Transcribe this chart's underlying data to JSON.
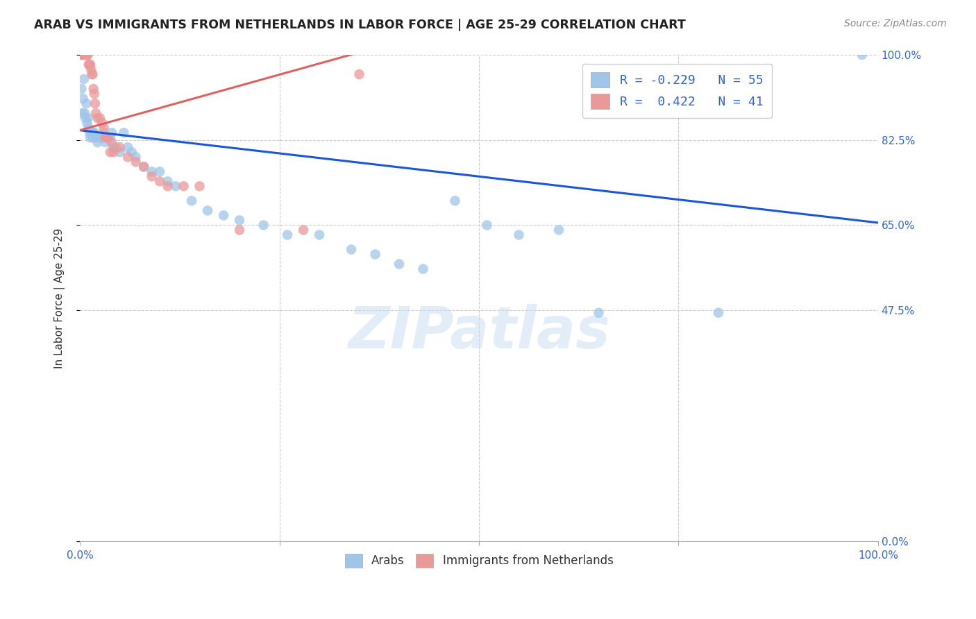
{
  "title": "ARAB VS IMMIGRANTS FROM NETHERLANDS IN LABOR FORCE | AGE 25-29 CORRELATION CHART",
  "source": "Source: ZipAtlas.com",
  "ylabel": "In Labor Force | Age 25-29",
  "xlim": [
    0.0,
    1.0
  ],
  "ylim": [
    0.0,
    1.0
  ],
  "ytick_labels": [
    "0.0%",
    "47.5%",
    "65.0%",
    "82.5%",
    "100.0%"
  ],
  "ytick_vals": [
    0.0,
    0.475,
    0.65,
    0.825,
    1.0
  ],
  "grid_color": "#cccccc",
  "background_color": "#ffffff",
  "arab_color": "#9fc5e8",
  "imm_color": "#ea9999",
  "arab_line_color": "#1a56db",
  "imm_line_color": "#e06060",
  "legend_R_arab": "R = -0.229",
  "legend_N_arab": "N = 55",
  "legend_R_imm": "R =  0.422",
  "legend_N_imm": "N = 41",
  "watermark": "ZIPatlas",
  "arab_x": [
    0.002,
    0.003,
    0.004,
    0.005,
    0.006,
    0.007,
    0.008,
    0.009,
    0.01,
    0.011,
    0.012,
    0.013,
    0.015,
    0.016,
    0.017,
    0.018,
    0.02,
    0.022,
    0.025,
    0.028,
    0.03,
    0.032,
    0.035,
    0.038,
    0.04,
    0.042,
    0.045,
    0.05,
    0.055,
    0.06,
    0.065,
    0.07,
    0.08,
    0.09,
    0.1,
    0.11,
    0.12,
    0.14,
    0.16,
    0.18,
    0.2,
    0.23,
    0.26,
    0.3,
    0.34,
    0.37,
    0.4,
    0.43,
    0.47,
    0.51,
    0.55,
    0.6,
    0.65,
    0.8,
    0.98
  ],
  "arab_y": [
    0.93,
    0.88,
    0.91,
    0.95,
    0.88,
    0.87,
    0.9,
    0.86,
    0.87,
    0.85,
    0.84,
    0.83,
    0.84,
    0.83,
    0.84,
    0.84,
    0.83,
    0.82,
    0.83,
    0.83,
    0.84,
    0.82,
    0.83,
    0.83,
    0.84,
    0.81,
    0.81,
    0.8,
    0.84,
    0.81,
    0.8,
    0.79,
    0.77,
    0.76,
    0.76,
    0.74,
    0.73,
    0.7,
    0.68,
    0.67,
    0.66,
    0.65,
    0.63,
    0.63,
    0.6,
    0.59,
    0.57,
    0.56,
    0.7,
    0.65,
    0.63,
    0.64,
    0.47,
    0.47,
    1.0
  ],
  "imm_x": [
    0.001,
    0.002,
    0.003,
    0.004,
    0.005,
    0.006,
    0.007,
    0.008,
    0.009,
    0.01,
    0.011,
    0.012,
    0.013,
    0.014,
    0.015,
    0.016,
    0.017,
    0.018,
    0.019,
    0.02,
    0.022,
    0.025,
    0.028,
    0.03,
    0.032,
    0.035,
    0.038,
    0.04,
    0.042,
    0.05,
    0.06,
    0.07,
    0.08,
    0.09,
    0.1,
    0.11,
    0.13,
    0.15,
    0.2,
    0.28,
    0.35
  ],
  "imm_y": [
    1.0,
    1.0,
    1.0,
    1.0,
    1.0,
    1.0,
    1.0,
    1.0,
    1.0,
    1.0,
    0.98,
    0.98,
    0.98,
    0.97,
    0.96,
    0.96,
    0.93,
    0.92,
    0.9,
    0.88,
    0.87,
    0.87,
    0.86,
    0.85,
    0.83,
    0.83,
    0.8,
    0.82,
    0.8,
    0.81,
    0.79,
    0.78,
    0.77,
    0.75,
    0.74,
    0.73,
    0.73,
    0.73,
    0.64,
    0.64,
    0.96
  ],
  "arab_line_x": [
    0.0,
    1.0
  ],
  "arab_line_y": [
    0.845,
    0.655
  ],
  "imm_line_x": [
    0.0,
    0.35
  ],
  "imm_line_y": [
    0.845,
    1.005
  ]
}
